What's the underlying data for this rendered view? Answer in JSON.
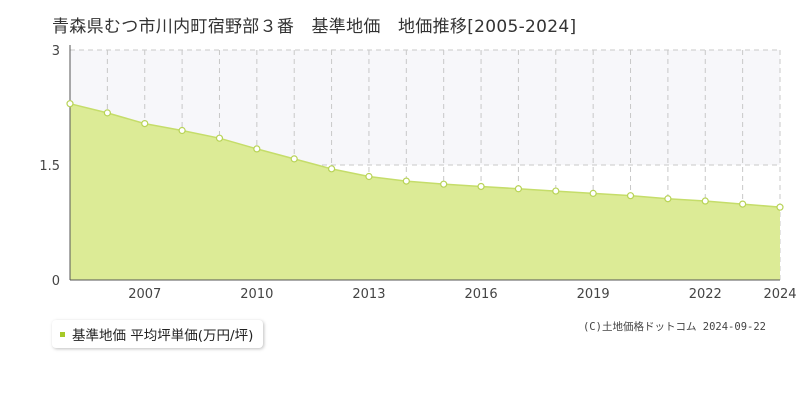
{
  "title": "青森県むつ市川内町宿野部３番　基準地価　地価推移[2005-2024]",
  "credit": "(C)土地価格ドットコム 2024-09-22",
  "colors": {
    "area_fill": "#dceb96",
    "line": "#c5dd6a",
    "point_fill": "#ffffff",
    "point_stroke": "#b8d357",
    "grid": "#c8c8c8",
    "band": "#f7f7fa",
    "legend_marker": "#a6c928"
  },
  "chart_data": {
    "type": "area",
    "title": "青森県むつ市川内町宿野部３番　基準地価　地価推移[2005-2024]",
    "xlabel": "",
    "ylabel": "",
    "x": [
      2005,
      2006,
      2007,
      2008,
      2009,
      2010,
      2011,
      2012,
      2013,
      2014,
      2015,
      2016,
      2017,
      2018,
      2019,
      2020,
      2021,
      2022,
      2023,
      2024
    ],
    "xticks": [
      "2007",
      "2010",
      "2013",
      "2016",
      "2019",
      "2022",
      "2024"
    ],
    "yticks": [
      "0",
      "1.5",
      "3"
    ],
    "ylim": [
      0,
      3
    ],
    "series": [
      {
        "name": "基準地価 平均坪単価(万円/坪)",
        "values": [
          2.3,
          2.18,
          2.04,
          1.95,
          1.85,
          1.71,
          1.58,
          1.45,
          1.35,
          1.29,
          1.25,
          1.22,
          1.19,
          1.16,
          1.13,
          1.1,
          1.06,
          1.03,
          0.99,
          0.95
        ]
      }
    ],
    "grid": true,
    "legend": "bottom-left"
  }
}
